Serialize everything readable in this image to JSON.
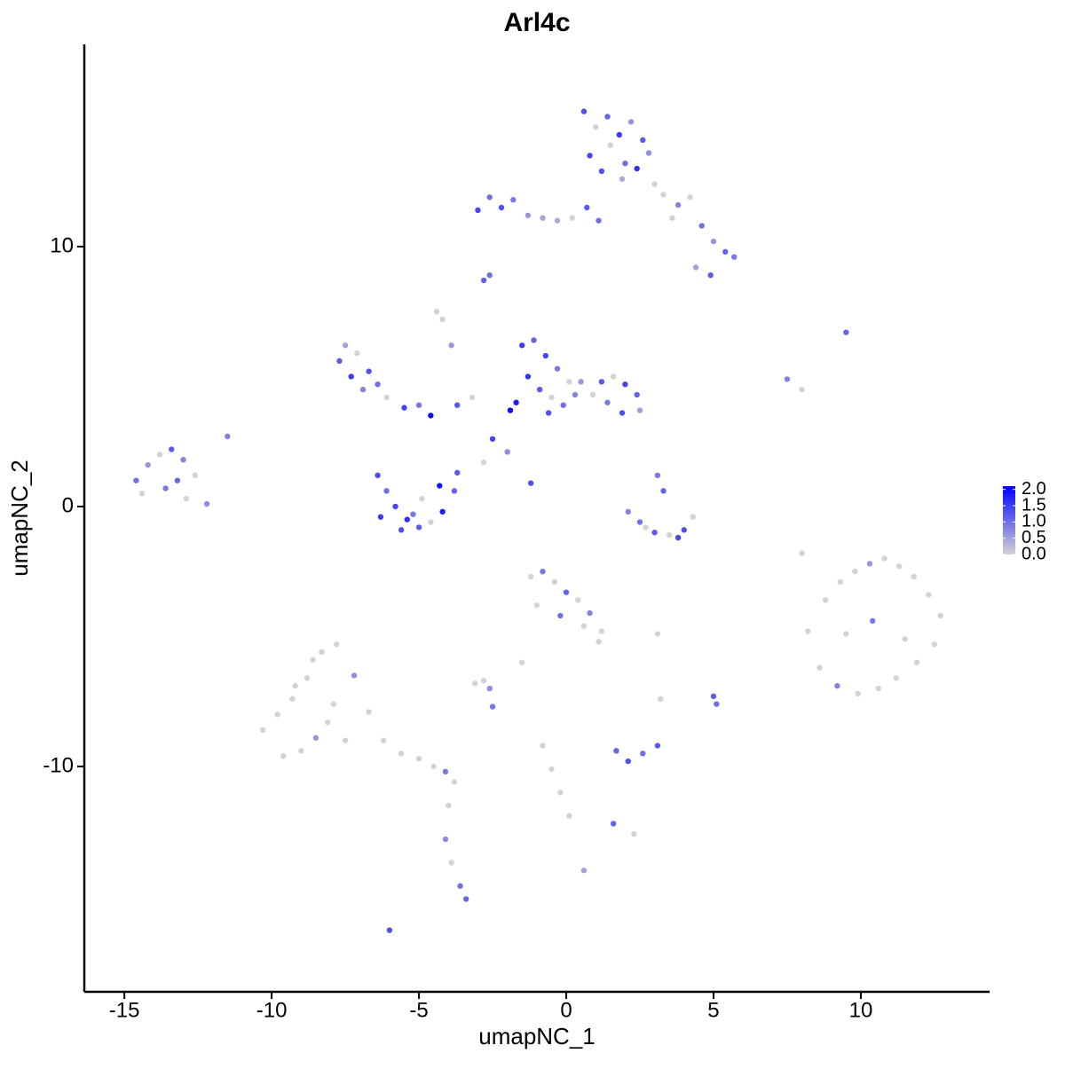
{
  "chart_data": {
    "type": "scatter",
    "title": "Arl4c",
    "x_label": "umapNC_1",
    "y_label": "umapNC_2",
    "x": [
      0.6,
      1.0,
      1.4,
      1.8,
      2.2,
      2.6,
      0.8,
      1.5,
      2.0,
      2.8,
      1.2,
      1.9,
      2.4,
      3.0,
      3.3,
      3.8,
      4.2,
      4.6,
      5.0,
      5.4,
      5.7,
      4.4,
      4.9,
      3.6,
      -3.0,
      -2.6,
      -2.2,
      -1.8,
      -1.3,
      -0.8,
      -0.3,
      0.2,
      0.7,
      1.1,
      -2.8,
      -2.6,
      -4.4,
      -4.2,
      9.5,
      7.5,
      8.0,
      -7.7,
      -7.5,
      -7.1,
      -6.7,
      -6.4,
      -7.3,
      -6.9,
      -6.1,
      -5.5,
      -5.0,
      -4.6,
      -3.7,
      -3.2,
      -2.5,
      -2.0,
      -1.2,
      -3.9,
      -2.8,
      -1.5,
      -1.1,
      -0.7,
      -0.3,
      0.1,
      -1.3,
      -0.9,
      -0.5,
      -0.1,
      0.3,
      -1.7,
      -0.6,
      -1.9,
      0.5,
      1.2,
      1.6,
      2.0,
      2.4,
      1.4,
      1.9,
      2.5,
      0.9,
      -6.4,
      -6.1,
      -5.8,
      -5.4,
      -5.0,
      -4.6,
      -4.2,
      -3.8,
      -6.3,
      -5.6,
      -4.9,
      -4.3,
      -3.7,
      -5.2,
      -14.6,
      -14.2,
      -13.8,
      -13.4,
      -13.0,
      -12.6,
      -14.4,
      -13.6,
      -12.9,
      -12.2,
      -13.2,
      -11.5,
      2.1,
      2.5,
      3.0,
      3.5,
      4.0,
      4.3,
      3.1,
      3.3,
      2.7,
      3.8,
      8.2,
      8.8,
      9.3,
      9.8,
      10.3,
      10.8,
      11.3,
      11.8,
      12.3,
      12.7,
      8.6,
      9.2,
      9.9,
      10.6,
      11.2,
      11.9,
      12.5,
      9.5,
      10.4,
      11.5,
      -1.2,
      -0.8,
      -0.4,
      0,
      0.4,
      0.8,
      1.2,
      -1.0,
      -0.2,
      0.6,
      1.1,
      -1.5,
      -10.3,
      -9.8,
      -9.3,
      -8.8,
      -8.3,
      -7.8,
      -7.2,
      -6.7,
      -9.0,
      -8.5,
      -7.9,
      -9.6,
      -8.1,
      -8.6,
      -7.5,
      -9.2,
      -6.2,
      -5.6,
      -5.0,
      -4.5,
      -4.1,
      -3.8,
      -4.0,
      -4.1,
      -3.9,
      -3.6,
      -3.4,
      -6.0,
      -3.1,
      -2.8,
      -2.6,
      -2.5,
      1.7,
      2.1,
      2.6,
      3.1,
      -0.8,
      -0.5,
      -0.2,
      0.1,
      2.3,
      3.1,
      5.0,
      5.1,
      3.2,
      1.6,
      0.6,
      8.0
    ],
    "y": [
      15.2,
      14.6,
      15.0,
      14.3,
      14.8,
      14.1,
      13.5,
      13.9,
      13.2,
      13.6,
      12.9,
      12.6,
      13.0,
      12.4,
      12.0,
      11.6,
      11.9,
      10.8,
      10.2,
      9.8,
      9.6,
      9.2,
      8.9,
      11.1,
      11.4,
      11.9,
      11.5,
      11.8,
      11.2,
      11.1,
      11.0,
      11.1,
      11.5,
      11.0,
      8.7,
      8.9,
      7.5,
      7.2,
      6.7,
      4.9,
      4.5,
      5.6,
      6.2,
      5.9,
      5.2,
      4.7,
      5.0,
      4.5,
      4.2,
      3.8,
      3.9,
      3.5,
      3.9,
      4.2,
      2.6,
      2.1,
      0.9,
      6.2,
      1.7,
      6.2,
      6.4,
      5.8,
      5.3,
      4.8,
      5.0,
      4.5,
      4.2,
      3.9,
      4.3,
      4.0,
      3.6,
      3.7,
      4.8,
      4.8,
      5.0,
      4.7,
      4.3,
      4.0,
      3.6,
      3.7,
      4.3,
      1.2,
      0.6,
      0.0,
      -0.5,
      -0.8,
      -0.6,
      -0.2,
      0.6,
      -0.4,
      -0.9,
      0.3,
      0.8,
      1.3,
      -0.3,
      1.0,
      1.6,
      2.0,
      2.2,
      1.8,
      1.2,
      0.5,
      0.7,
      0.3,
      0.1,
      1.0,
      2.7,
      -0.2,
      -0.6,
      -1.0,
      -1.1,
      -0.9,
      -0.4,
      1.2,
      0.6,
      -0.8,
      -1.2,
      -4.8,
      -3.6,
      -2.9,
      -2.5,
      -2.2,
      -2.0,
      -2.3,
      -2.7,
      -3.4,
      -4.2,
      -6.2,
      -6.9,
      -7.2,
      -7.0,
      -6.6,
      -6.0,
      -5.3,
      -4.9,
      -4.4,
      -5.1,
      -2.7,
      -2.5,
      -2.9,
      -3.3,
      -3.6,
      -4.1,
      -4.8,
      -3.8,
      -4.2,
      -4.6,
      -5.2,
      -6.0,
      -8.6,
      -8.0,
      -7.4,
      -6.6,
      -5.6,
      -5.3,
      -6.5,
      -7.9,
      -9.4,
      -8.9,
      -7.6,
      -9.6,
      -8.3,
      -5.9,
      -9.0,
      -6.9,
      -9.0,
      -9.5,
      -9.7,
      -10.0,
      -10.2,
      -10.6,
      -11.5,
      -12.8,
      -13.7,
      -14.6,
      -15.1,
      -16.3,
      -6.8,
      -6.7,
      -7.0,
      -7.7,
      -9.4,
      -9.8,
      -9.5,
      -9.2,
      -9.2,
      -10.1,
      -11.0,
      -11.9,
      -12.6,
      -4.9,
      -7.3,
      -7.6,
      -7.4,
      -12.2,
      -14.0,
      -1.8
    ],
    "values": [
      1.3,
      0,
      1.1,
      1.5,
      0.6,
      1.2,
      1.4,
      0,
      1.0,
      0.7,
      1.3,
      0.4,
      1.6,
      0,
      0,
      0.8,
      0,
      1.0,
      0.6,
      1.1,
      0.9,
      0.5,
      1.2,
      0,
      1.4,
      1.0,
      1.3,
      0.9,
      0.6,
      0.5,
      0.4,
      0,
      1.2,
      1.0,
      1.1,
      1.0,
      0,
      0,
      1.1,
      0.8,
      0,
      1.2,
      0.5,
      0,
      1.3,
      1.0,
      1.5,
      0.8,
      0,
      1.4,
      0.9,
      2.0,
      1.2,
      0,
      1.4,
      0.7,
      1.3,
      0.6,
      0,
      1.5,
      1.1,
      1.4,
      0.9,
      0,
      1.6,
      1.2,
      0,
      1.0,
      0.8,
      1.8,
      1.3,
      2.0,
      0.6,
      1.2,
      0,
      1.4,
      1.1,
      0.9,
      1.3,
      0.5,
      0,
      1.3,
      1.0,
      1.4,
      1.6,
      1.2,
      0,
      1.8,
      1.1,
      1.5,
      1.3,
      0,
      1.9,
      1.2,
      0.9,
      1.0,
      0.6,
      0,
      1.2,
      0.8,
      0,
      0,
      0.9,
      0,
      0.7,
      1.1,
      0.8,
      0.8,
      1.0,
      1.2,
      0,
      1.3,
      0,
      0.9,
      1.1,
      0,
      1.4,
      0,
      0,
      0,
      0,
      0.6,
      0,
      0,
      0,
      0,
      0,
      0,
      0.8,
      0,
      0,
      0,
      0,
      0,
      0,
      0.9,
      0,
      0,
      0.9,
      0,
      1.1,
      0,
      0.8,
      0,
      0,
      1.0,
      0,
      0,
      0,
      0,
      0,
      0,
      0,
      0,
      0,
      0.7,
      0,
      0,
      0.6,
      0,
      0,
      0,
      0,
      0,
      0,
      0,
      0,
      0,
      0,
      0.9,
      0,
      0,
      0.7,
      0,
      1.0,
      1.1,
      1.3,
      0,
      0,
      0.7,
      0.9,
      1.1,
      1.3,
      1.0,
      1.2,
      0,
      0,
      0,
      0,
      0,
      0,
      1.2,
      1.0,
      0,
      1.1,
      0.5,
      0
    ],
    "xlim": [
      -16.36,
      14.37
    ],
    "ylim": [
      -18.67,
      17.78
    ],
    "xticks": [
      -15,
      -10,
      -5,
      0,
      5,
      10
    ],
    "yticks": [
      -10,
      0,
      10
    ],
    "colors": [
      "#d3d3d3",
      "#0000ff"
    ],
    "clim": [
      0,
      2.1
    ],
    "cticks": [
      {
        "value": 0,
        "label": "0.0"
      },
      {
        "value": 0.5,
        "label": "0.5"
      },
      {
        "value": 1,
        "label": "1.0"
      },
      {
        "value": 1.5,
        "label": "1.5"
      },
      {
        "value": 2,
        "label": "2.0"
      }
    ]
  }
}
